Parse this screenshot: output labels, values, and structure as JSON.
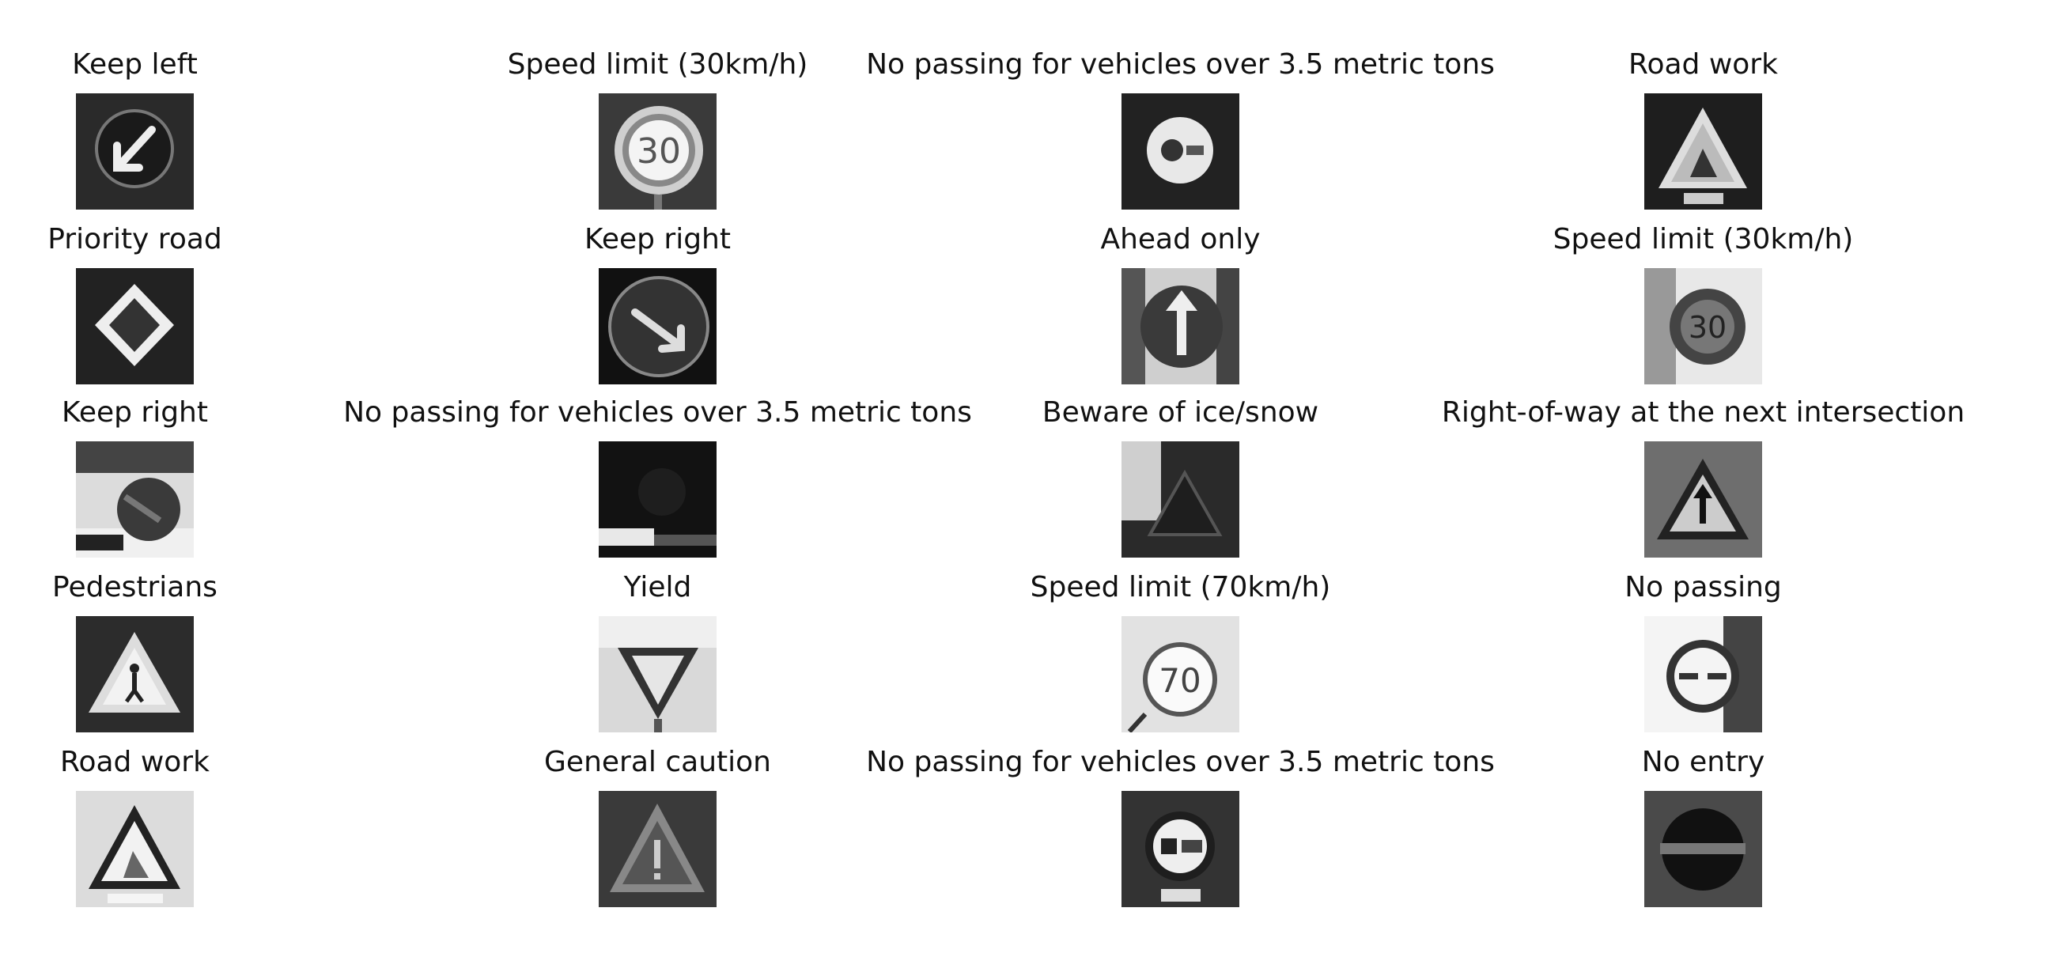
{
  "grid": {
    "rows": [
      [
        {
          "label": "Keep left",
          "icon": "keep-left-sign"
        },
        {
          "label": "Speed limit (30km/h)",
          "icon": "speed-limit-30-sign"
        },
        {
          "label": "No passing for vehicles over 3.5 metric tons",
          "icon": "no-passing-trucks-sign"
        },
        {
          "label": "Road work",
          "icon": "road-work-sign"
        }
      ],
      [
        {
          "label": "Priority road",
          "icon": "priority-road-sign"
        },
        {
          "label": "Keep right",
          "icon": "keep-right-sign"
        },
        {
          "label": "Ahead only",
          "icon": "ahead-only-sign"
        },
        {
          "label": "Speed limit (30km/h)",
          "icon": "speed-limit-30-sign"
        }
      ],
      [
        {
          "label": "Keep right",
          "icon": "keep-right-sign"
        },
        {
          "label": "No passing for vehicles over 3.5 metric tons",
          "icon": "no-passing-trucks-sign"
        },
        {
          "label": "Beware of ice/snow",
          "icon": "ice-snow-sign"
        },
        {
          "label": "Right-of-way at the next intersection",
          "icon": "right-of-way-sign"
        }
      ],
      [
        {
          "label": "Pedestrians",
          "icon": "pedestrians-sign"
        },
        {
          "label": "Yield",
          "icon": "yield-sign"
        },
        {
          "label": "Speed limit (70km/h)",
          "icon": "speed-limit-70-sign"
        },
        {
          "label": "No passing",
          "icon": "no-passing-sign"
        }
      ],
      [
        {
          "label": "Road work",
          "icon": "road-work-sign"
        },
        {
          "label": "General caution",
          "icon": "general-caution-sign"
        },
        {
          "label": "No passing for vehicles over 3.5 metric tons",
          "icon": "no-passing-trucks-sign"
        },
        {
          "label": "No entry",
          "icon": "no-entry-sign"
        }
      ]
    ]
  }
}
